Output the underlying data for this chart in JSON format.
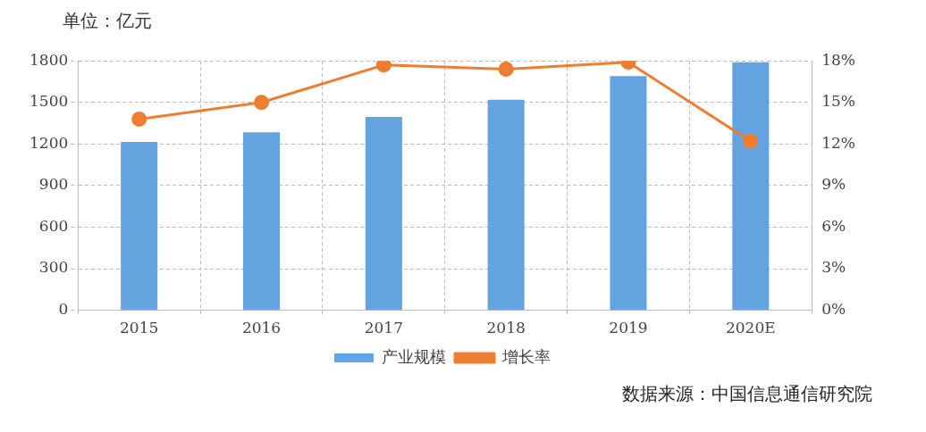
{
  "chart_data": {
    "type": "bar",
    "categories": [
      "2015",
      "2016",
      "2017",
      "2018",
      "2019",
      "2020E"
    ],
    "series": [
      {
        "name": "产业规模",
        "color": "#62a3e0",
        "values": [
          1215,
          1285,
          1395,
          1520,
          1690,
          1790
        ]
      },
      {
        "name": "增长率",
        "type": "line",
        "axis": "y2",
        "color": "#ed7d31",
        "values": [
          13.8,
          15,
          17.7,
          17.4,
          17.9,
          12.2
        ]
      }
    ],
    "ylim": [
      0,
      1800
    ],
    "yticks": [
      0,
      300,
      600,
      900,
      1200,
      1500,
      1800
    ],
    "y2lim": [
      0,
      18
    ],
    "y2ticks": [
      {
        "value": 0,
        "label": "0%"
      },
      {
        "value": 3,
        "label": "3%"
      },
      {
        "value": 6,
        "label": "6%"
      },
      {
        "value": 9,
        "label": "9%"
      },
      {
        "value": 12,
        "label": "12%"
      },
      {
        "value": 15,
        "label": "15%"
      },
      {
        "value": 18,
        "label": "18%"
      }
    ],
    "grid": true,
    "legend": "bottom",
    "marker": "circle",
    "line_style": "solid",
    "annotations": [
      "单位：亿元",
      "数据来源：中国信息通信研究院"
    ]
  }
}
